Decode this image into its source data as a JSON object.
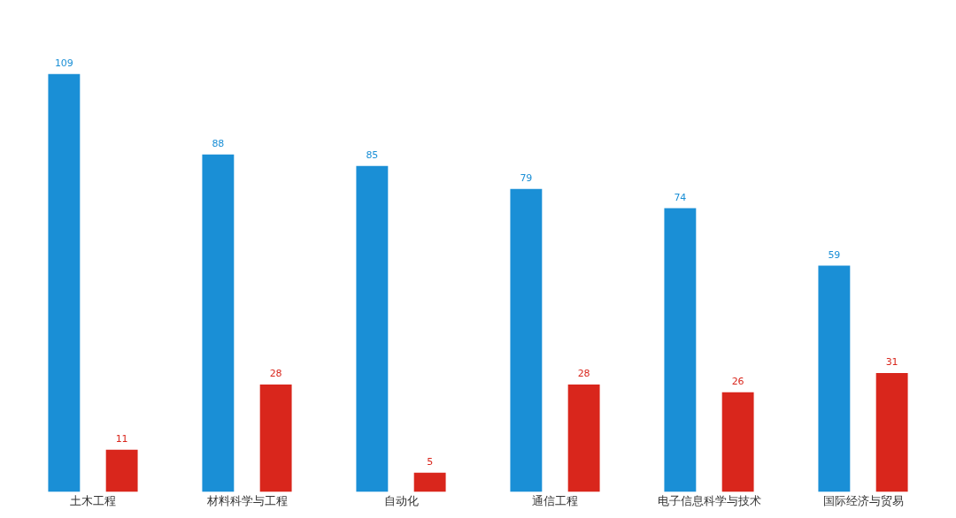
{
  "chart_data": {
    "type": "bar",
    "categories": [
      "土木工程",
      "材料科学与工程",
      "自动化",
      "通信工程",
      "电子信息科学与技术",
      "国际经济与贸易"
    ],
    "series": [
      {
        "color": "#1a8fd6",
        "values": [
          109,
          88,
          85,
          79,
          74,
          59
        ]
      },
      {
        "color": "#d9261c",
        "values": [
          11,
          28,
          5,
          28,
          26,
          31
        ]
      }
    ],
    "data_labels": true,
    "grid": false,
    "legend": false,
    "tick_labels": "x"
  }
}
